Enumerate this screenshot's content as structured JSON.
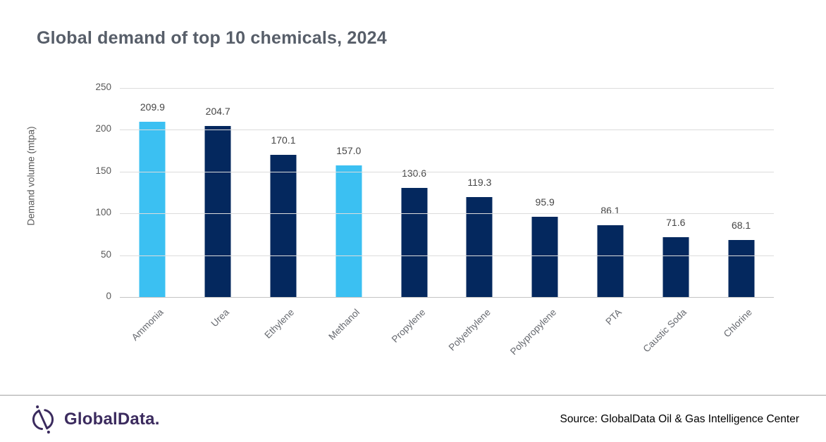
{
  "chart_data": {
    "type": "bar",
    "title": "Global demand of top 10 chemicals, 2024",
    "categories": [
      "Ammonia",
      "Urea",
      "Ethylene",
      "Methanol",
      "Propylene",
      "Polyethylene",
      "Polypropylene",
      "PTA",
      "Caustic Soda",
      "Chlorine"
    ],
    "values": [
      209.9,
      204.7,
      170.1,
      157.0,
      130.6,
      119.3,
      95.9,
      86.1,
      71.6,
      68.1
    ],
    "value_labels": [
      "209.9",
      "204.7",
      "170.1",
      "157.0",
      "130.6",
      "119.3",
      "95.9",
      "86.1",
      "71.6",
      "68.1"
    ],
    "highlight_indices": [
      0,
      3
    ],
    "xlabel": "",
    "ylabel": "Demand volume (mtpa)",
    "ylim": [
      0,
      250
    ],
    "yticks": [
      0,
      50,
      100,
      150,
      200,
      250
    ],
    "grid": true,
    "legend": false,
    "colors": {
      "primary": "#04285e",
      "highlight": "#3bc0f2"
    }
  },
  "footer": {
    "logo_text": "GlobalData.",
    "source": "Source: GlobalData Oil & Gas Intelligence Center",
    "logo_color": "#3b2b5e"
  }
}
